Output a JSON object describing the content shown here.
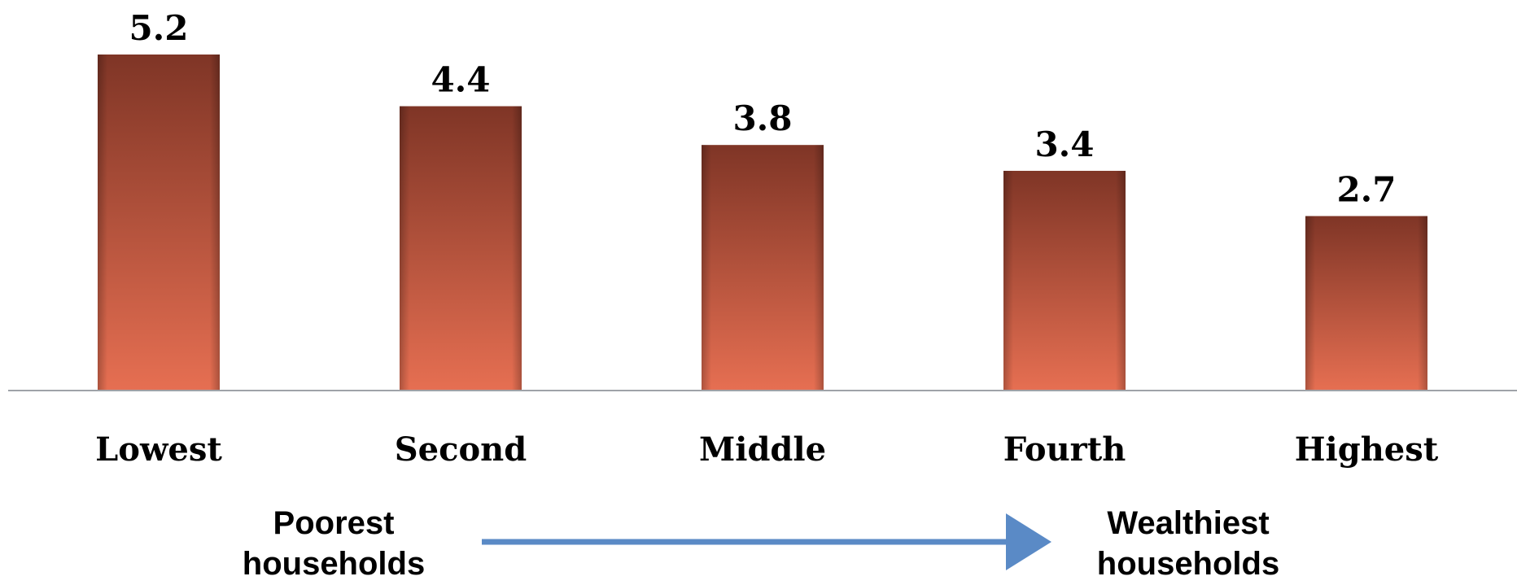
{
  "chart_data": {
    "type": "bar",
    "categories": [
      "Lowest",
      "Second",
      "Middle",
      "Fourth",
      "Highest"
    ],
    "values": [
      5.2,
      4.4,
      3.8,
      3.4,
      2.7
    ],
    "data_labels": [
      "5.2",
      "4.4",
      "3.8",
      "3.4",
      "2.7"
    ],
    "title": "",
    "xlabel": "",
    "ylabel": "",
    "ylim": [
      0,
      5.2
    ],
    "grid": false,
    "legend": "none",
    "bar_color_top": "#7f3526",
    "bar_color_bottom": "#e66f52",
    "axis_color": "#9fa3a8"
  },
  "annotations": {
    "left_line1": "Poorest",
    "left_line2": "households",
    "right_line1": "Wealthiest",
    "right_line2": "households",
    "arrow_color": "#5a8ac6"
  }
}
